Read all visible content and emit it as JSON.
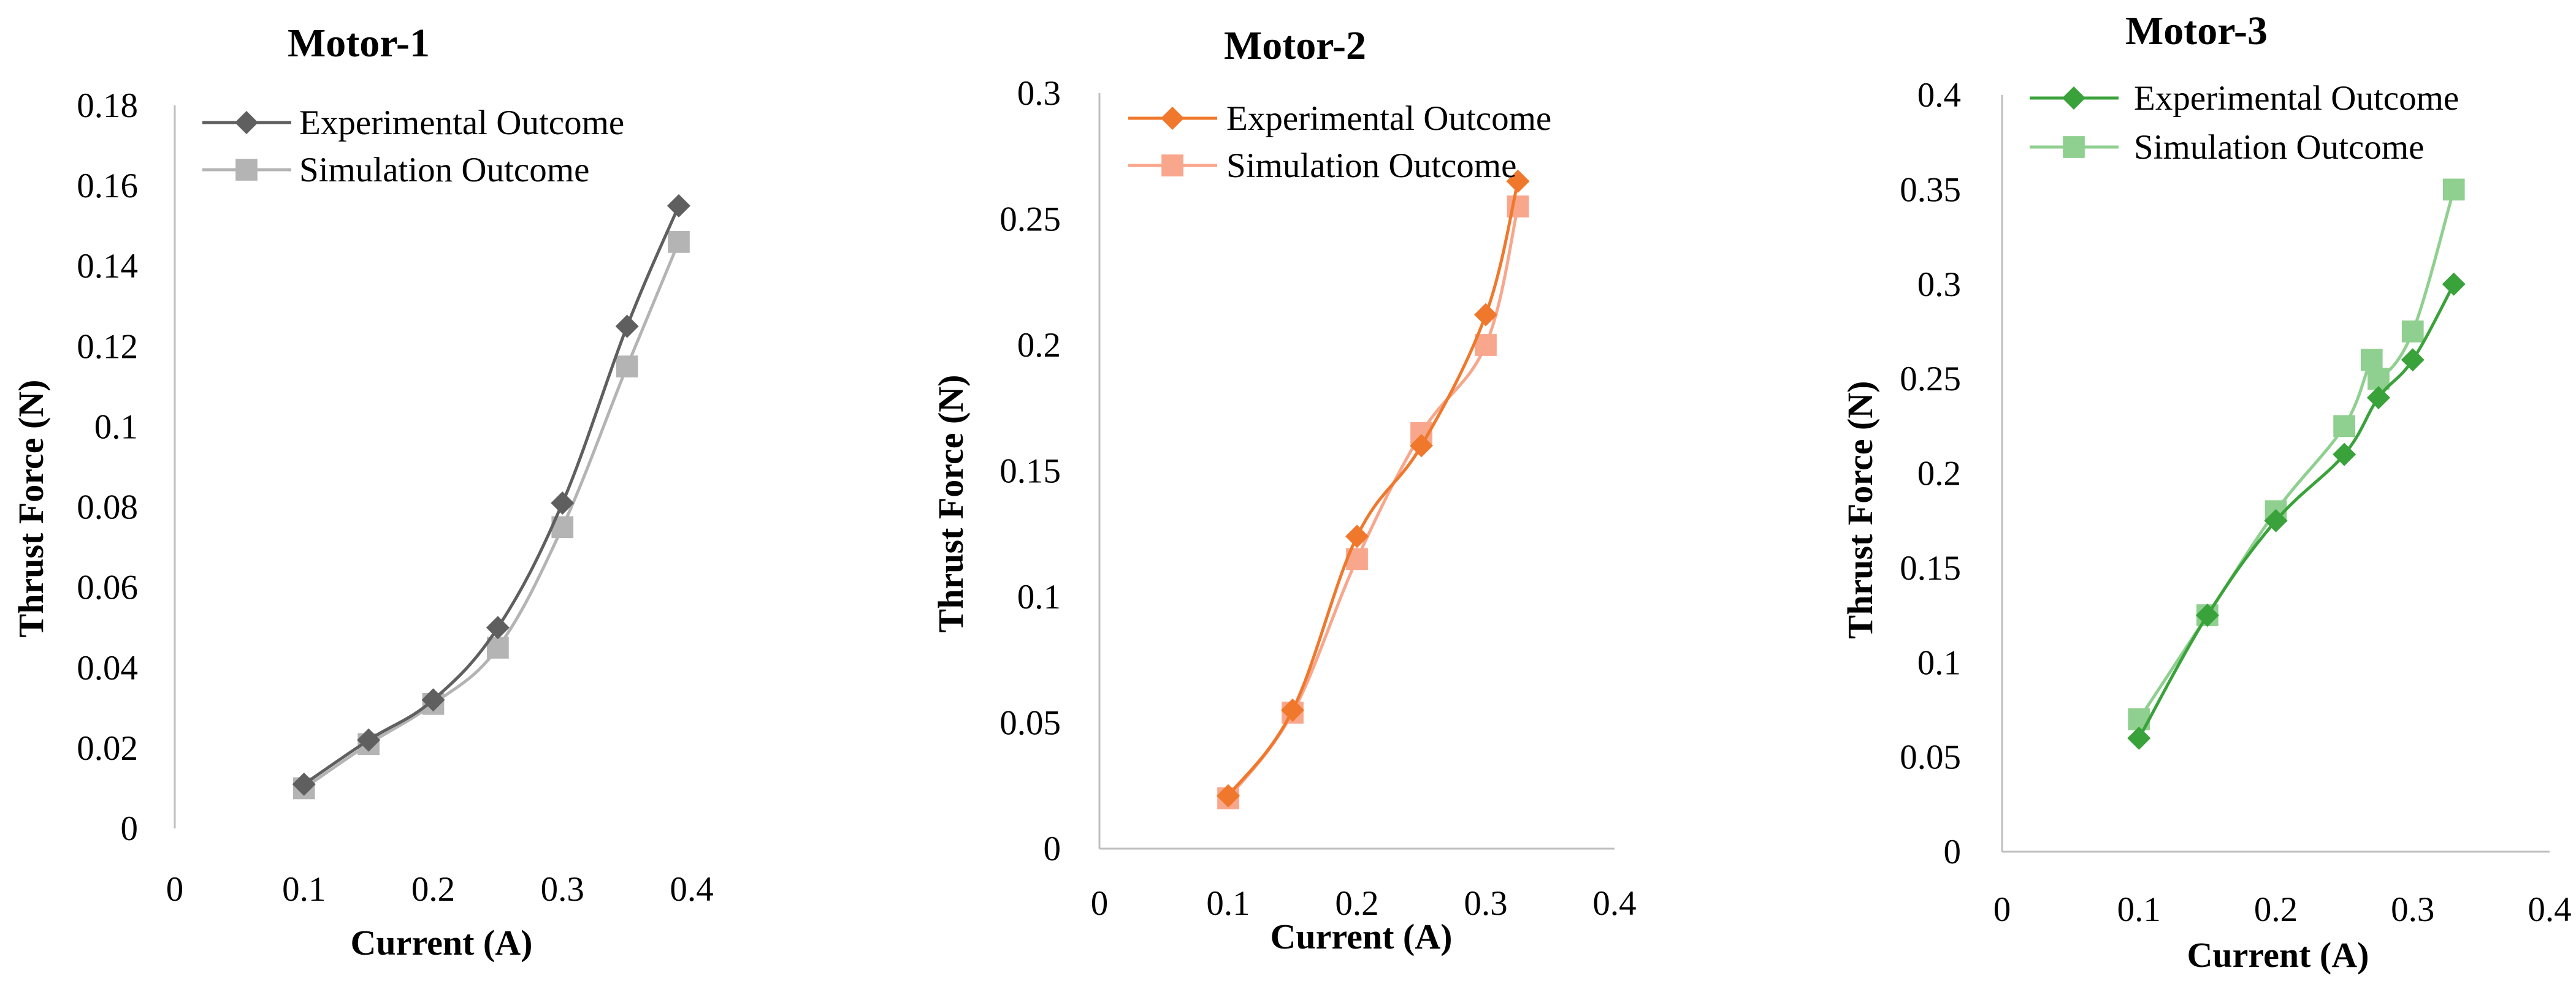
{
  "chart_data": [
    {
      "type": "line",
      "title": "Motor-1",
      "xlabel": "Current (A)",
      "ylabel": "Thrust Force (N)",
      "xlim": [
        0,
        0.4
      ],
      "ylim": [
        0,
        0.18
      ],
      "xticks": [
        "0",
        "0.1",
        "0.2",
        "0.3",
        "0.4"
      ],
      "yticks": [
        "0",
        "0.02",
        "0.04",
        "0.06",
        "0.08",
        "0.1",
        "0.12",
        "0.14",
        "0.16",
        "0.18"
      ],
      "legend_position": "top-left",
      "series": [
        {
          "name": "Experimental Outcome",
          "marker": "diamond",
          "color": "#5f5f5f",
          "x": [
            0.1,
            0.15,
            0.2,
            0.25,
            0.3,
            0.35,
            0.39
          ],
          "y": [
            0.011,
            0.022,
            0.032,
            0.05,
            0.081,
            0.125,
            0.155
          ]
        },
        {
          "name": "Simulation Outcome",
          "marker": "square",
          "color": "#b4b4b4",
          "x": [
            0.1,
            0.15,
            0.2,
            0.25,
            0.3,
            0.35,
            0.39
          ],
          "y": [
            0.01,
            0.021,
            0.031,
            0.045,
            0.075,
            0.115,
            0.146
          ]
        }
      ]
    },
    {
      "type": "line",
      "title": "Motor-2",
      "xlabel": "Current (A)",
      "ylabel": "Thrust Force (N)",
      "xlim": [
        0,
        0.4
      ],
      "ylim": [
        0,
        0.3
      ],
      "xticks": [
        "0",
        "0.1",
        "0.2",
        "0.3",
        "0.4"
      ],
      "yticks": [
        "0",
        "0.05",
        "0.1",
        "0.15",
        "0.2",
        "0.25",
        "0.3"
      ],
      "legend_position": "top-left",
      "series": [
        {
          "name": "Experimental Outcome",
          "marker": "diamond",
          "color": "#f0782c",
          "x": [
            0.1,
            0.15,
            0.2,
            0.25,
            0.3,
            0.325
          ],
          "y": [
            0.021,
            0.055,
            0.124,
            0.16,
            0.212,
            0.265
          ]
        },
        {
          "name": "Simulation Outcome",
          "marker": "square",
          "color": "#f8a68c",
          "x": [
            0.1,
            0.15,
            0.2,
            0.25,
            0.3,
            0.325
          ],
          "y": [
            0.02,
            0.054,
            0.115,
            0.165,
            0.2,
            0.255
          ]
        }
      ]
    },
    {
      "type": "line",
      "title": "Motor-3",
      "xlabel": "Current (A)",
      "ylabel": "Thrust Force (N)",
      "xlim": [
        0,
        0.4
      ],
      "ylim": [
        0,
        0.4
      ],
      "xticks": [
        "0",
        "0.1",
        "0.2",
        "0.3",
        "0.4"
      ],
      "yticks": [
        "0",
        "0.05",
        "0.1",
        "0.15",
        "0.2",
        "0.25",
        "0.3",
        "0.35",
        "0.4"
      ],
      "legend_position": "top-left",
      "series": [
        {
          "name": "Experimental Outcome",
          "marker": "diamond",
          "color": "#3aa23a",
          "x": [
            0.1,
            0.15,
            0.2,
            0.25,
            0.275,
            0.3,
            0.33
          ],
          "y": [
            0.06,
            0.125,
            0.175,
            0.21,
            0.24,
            0.26,
            0.3
          ]
        },
        {
          "name": "Simulation Outcome",
          "marker": "square",
          "color": "#8fcf8f",
          "x": [
            0.1,
            0.15,
            0.2,
            0.25,
            0.27,
            0.275,
            0.3,
            0.33
          ],
          "y": [
            0.07,
            0.125,
            0.18,
            0.225,
            0.26,
            0.25,
            0.275,
            0.35
          ]
        }
      ]
    }
  ]
}
